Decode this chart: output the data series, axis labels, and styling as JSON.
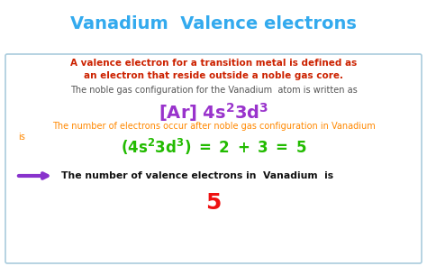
{
  "title": "Vanadium  Valence electrons",
  "title_color": "#33AAEE",
  "bg_color": "#FFFFFF",
  "box_edge_color": "#AACCDD",
  "line1": "A valence electron for a transition metal is defined as",
  "line2": "an electron that reside outside a noble gas core.",
  "red_color": "#CC2200",
  "line3": "The noble gas configuration for the Vanadium  atom is written as",
  "gray_color": "#555555",
  "config_color": "#9933CC",
  "orange_line1": "The number of electrons occur after noble gas configuration in Vanadium",
  "orange_line2": "is",
  "orange_color": "#FF8800",
  "eq_color": "#22BB00",
  "arrow_color": "#8833CC",
  "final_label": "The number of valence electrons in  Vanadium  is",
  "final_bold_color": "#111111",
  "final_num_color": "#EE1111"
}
